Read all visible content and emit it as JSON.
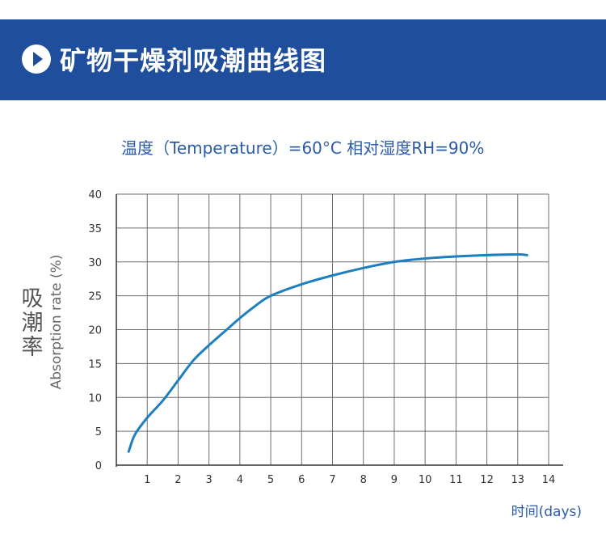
{
  "header": {
    "title": "矿物干燥剂吸潮曲线图"
  },
  "subtitle": "温度（Temperature）=60°C  相对湿度RH=90%",
  "colors": {
    "header_bg": "#1f4e9c",
    "curve": "#1e7fc0",
    "grid": "#6e6e6e",
    "text_blue": "#2a5ba8"
  },
  "chart_data": {
    "type": "line",
    "title": "",
    "xlabel": "时间(days)",
    "ylabel_cn": "吸潮率",
    "ylabel_en": "Absorption rate (%)",
    "xlim": [
      0,
      14
    ],
    "ylim": [
      0,
      40
    ],
    "x_ticks": [
      "1",
      "2",
      "3",
      "4",
      "5",
      "6",
      "7",
      "8",
      "9",
      "10",
      "11",
      "12",
      "13",
      "14"
    ],
    "y_ticks": [
      "0",
      "5",
      "10",
      "15",
      "20",
      "25",
      "30",
      "35",
      "40"
    ],
    "grid": true,
    "series": [
      {
        "x": [
          0.4,
          0.6,
          1.0,
          1.5,
          2.0,
          2.5,
          3.0,
          3.5,
          4.0,
          4.5,
          5.0,
          6.0,
          7.0,
          8.0,
          9.0,
          10.0,
          11.0,
          12.0,
          13.0,
          13.3
        ],
        "y": [
          2.0,
          4.5,
          7.0,
          9.5,
          12.5,
          15.5,
          17.7,
          19.7,
          21.7,
          23.5,
          25.0,
          26.7,
          28.0,
          29.1,
          30.0,
          30.5,
          30.8,
          31.0,
          31.1,
          31.0
        ]
      }
    ]
  }
}
